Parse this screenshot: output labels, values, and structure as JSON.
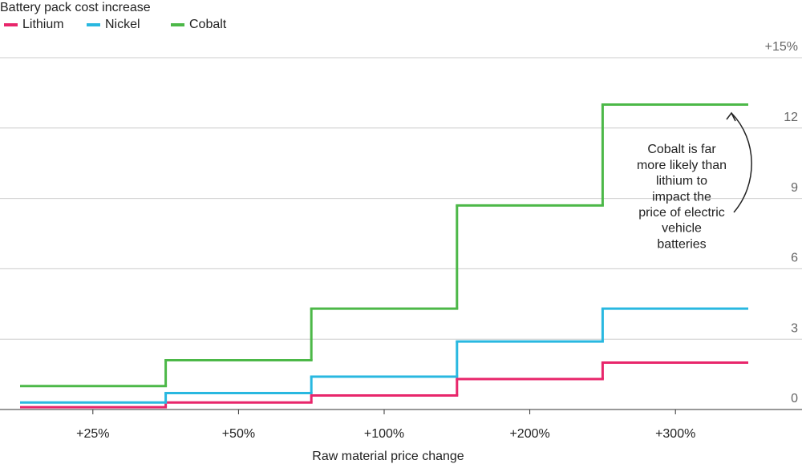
{
  "chart_data": {
    "type": "step",
    "title": "Battery pack cost increase",
    "x_label": "Raw material price change",
    "categories": [
      "+25%",
      "+50%",
      "+100%",
      "+200%",
      "+300%"
    ],
    "series": [
      {
        "name": "Lithium",
        "color": "#e8266b",
        "values": [
          0.1,
          0.3,
          0.6,
          1.3,
          2.0
        ]
      },
      {
        "name": "Nickel",
        "color": "#29b8e0",
        "values": [
          0.3,
          0.7,
          1.4,
          2.9,
          4.3
        ]
      },
      {
        "name": "Cobalt",
        "color": "#4cb848",
        "values": [
          1.0,
          2.1,
          4.3,
          8.7,
          13.0
        ]
      }
    ],
    "ylim": [
      0,
      15
    ],
    "yticks": [
      0,
      3,
      6,
      9,
      12,
      {
        "value": 15,
        "label": "+15%"
      }
    ],
    "grid": true,
    "annotation": [
      "Cobalt is far",
      "more likely than",
      "lithium to",
      "impact the",
      "price of electric",
      "vehicle",
      "batteries"
    ]
  }
}
